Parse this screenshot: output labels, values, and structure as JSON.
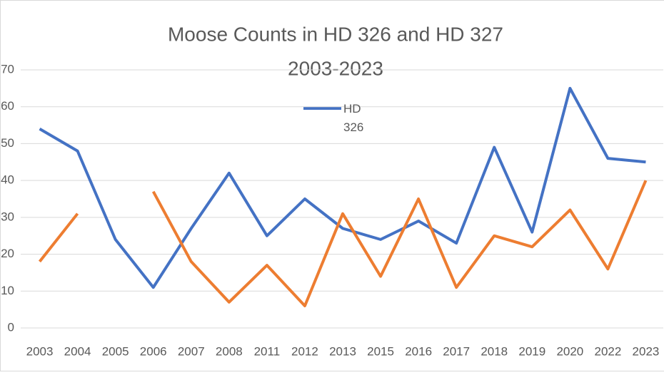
{
  "chart_data": {
    "type": "line",
    "title": "Moose Counts in HD 326 and HD 327",
    "subtitle": "2003-2023",
    "categories": [
      "2003",
      "2004",
      "2005",
      "2006",
      "2007",
      "2008",
      "2011",
      "2012",
      "2013",
      "2015",
      "2016",
      "2017",
      "2018",
      "2019",
      "2020",
      "2022",
      "2023"
    ],
    "series": [
      {
        "name": "HD 326",
        "color": "#4472c4",
        "values": [
          54,
          48,
          24,
          11,
          27,
          42,
          25,
          35,
          27,
          24,
          29,
          23,
          49,
          26,
          65,
          46,
          45
        ]
      },
      {
        "color": "#ed7d31",
        "values": [
          18,
          31,
          null,
          37,
          18,
          7,
          17,
          6,
          31,
          14,
          35,
          11,
          25,
          22,
          32,
          16,
          40
        ]
      }
    ],
    "ylim": [
      0,
      70
    ],
    "yticks": [
      0,
      10,
      20,
      30,
      40,
      50,
      60,
      70
    ],
    "grid": true
  }
}
